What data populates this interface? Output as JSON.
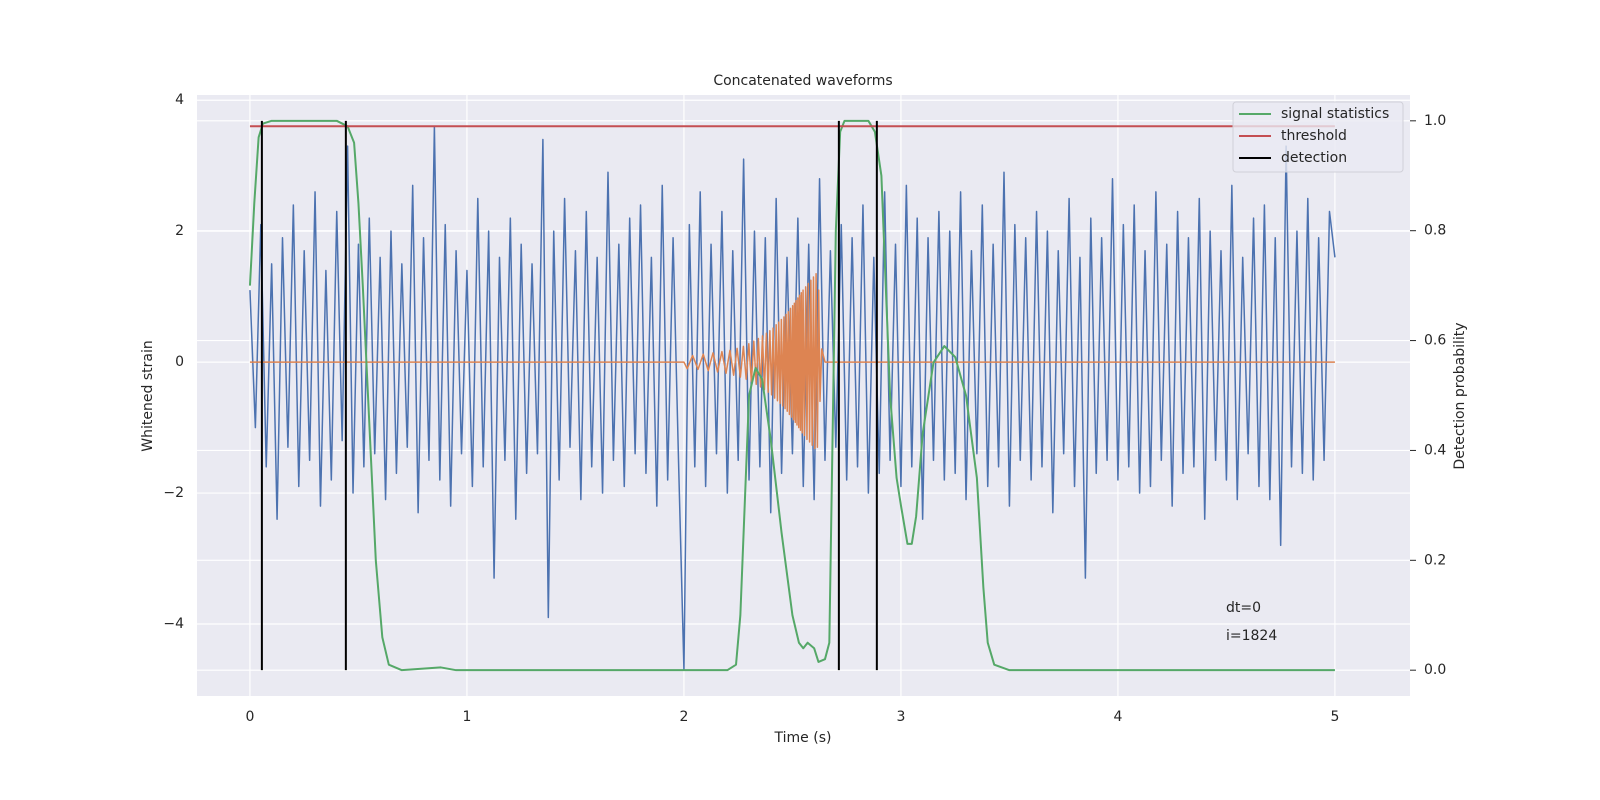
{
  "chart_data": {
    "type": "line",
    "title": "Concatenated waveforms",
    "xlabel": "Time (s)",
    "ylabel": "Whitened strain",
    "y2label": "Detection probability",
    "xlim": [
      -0.244,
      5.346
    ],
    "ylim": [
      -5.1,
      4.08
    ],
    "y2lim": [
      -0.047,
      1.047
    ],
    "xticks": [
      0,
      1,
      2,
      3,
      4,
      5
    ],
    "yticks": [
      {
        "value": -4,
        "label": "−4"
      },
      {
        "value": -2,
        "label": "−2"
      },
      0,
      2,
      4
    ],
    "y2ticks": [
      {
        "value": 0,
        "label": "0.0"
      },
      0.2,
      0.4,
      0.6,
      0.8,
      {
        "value": 1,
        "label": "1.0"
      }
    ],
    "grid": true,
    "legend": "upper right",
    "annotations": [
      "dt=0",
      "i=1824"
    ],
    "series": [
      {
        "color": "#4c72b0",
        "x": [
          0,
          0.025,
          0.05,
          0.075,
          0.1,
          0.125,
          0.15,
          0.175,
          0.2,
          0.225,
          0.25,
          0.275,
          0.3,
          0.325,
          0.35,
          0.375,
          0.4,
          0.425,
          0.45,
          0.475,
          0.5,
          0.525,
          0.55,
          0.575,
          0.6,
          0.625,
          0.65,
          0.675,
          0.7,
          0.725,
          0.75,
          0.775,
          0.8,
          0.825,
          0.85,
          0.875,
          0.9,
          0.925,
          0.95,
          0.975,
          1,
          1.025,
          1.05,
          1.075,
          1.1,
          1.125,
          1.15,
          1.175,
          1.2,
          1.225,
          1.25,
          1.275,
          1.3,
          1.325,
          1.35,
          1.375,
          1.4,
          1.425,
          1.45,
          1.475,
          1.5,
          1.525,
          1.55,
          1.575,
          1.6,
          1.625,
          1.65,
          1.675,
          1.7,
          1.725,
          1.75,
          1.775,
          1.8,
          1.825,
          1.85,
          1.875,
          1.9,
          1.925,
          1.95,
          1.975,
          2,
          2.025,
          2.05,
          2.075,
          2.1,
          2.125,
          2.15,
          2.175,
          2.2,
          2.225,
          2.25,
          2.275,
          2.3,
          2.325,
          2.35,
          2.375,
          2.4,
          2.425,
          2.45,
          2.475,
          2.5,
          2.525,
          2.55,
          2.575,
          2.6,
          2.625,
          2.65,
          2.675,
          2.7,
          2.725,
          2.75,
          2.775,
          2.8,
          2.825,
          2.85,
          2.875,
          2.9,
          2.925,
          2.95,
          2.975,
          3,
          3.025,
          3.05,
          3.075,
          3.1,
          3.125,
          3.15,
          3.175,
          3.2,
          3.225,
          3.25,
          3.275,
          3.3,
          3.325,
          3.35,
          3.375,
          3.4,
          3.425,
          3.45,
          3.475,
          3.5,
          3.525,
          3.55,
          3.575,
          3.6,
          3.625,
          3.65,
          3.675,
          3.7,
          3.725,
          3.75,
          3.775,
          3.8,
          3.825,
          3.85,
          3.875,
          3.9,
          3.925,
          3.95,
          3.975,
          4,
          4.025,
          4.05,
          4.075,
          4.1,
          4.125,
          4.15,
          4.175,
          4.2,
          4.225,
          4.25,
          4.275,
          4.3,
          4.325,
          4.35,
          4.375,
          4.4,
          4.425,
          4.45,
          4.475,
          4.5,
          4.525,
          4.55,
          4.575,
          4.6,
          4.625,
          4.65,
          4.675,
          4.7,
          4.725,
          4.75,
          4.775,
          4.8,
          4.825,
          4.85,
          4.875,
          4.9,
          4.925,
          4.95,
          4.975,
          5
        ],
        "values": [
          1.1,
          -1.0,
          2.1,
          -1.6,
          1.5,
          -2.4,
          1.9,
          -1.3,
          2.4,
          -1.9,
          1.7,
          -1.5,
          2.6,
          -2.2,
          1.4,
          -1.8,
          2.3,
          -1.2,
          3.3,
          -2.0,
          1.8,
          -1.6,
          2.2,
          -1.4,
          1.6,
          -2.1,
          2.0,
          -1.7,
          1.5,
          -1.3,
          2.7,
          -2.3,
          1.9,
          -1.5,
          3.6,
          -1.8,
          2.1,
          -2.2,
          1.7,
          -1.4,
          1.4,
          -1.9,
          2.5,
          -1.6,
          2.0,
          -3.3,
          1.6,
          -1.5,
          2.2,
          -2.4,
          1.8,
          -1.7,
          1.5,
          -1.4,
          3.4,
          -3.9,
          2.0,
          -1.8,
          2.5,
          -1.3,
          1.7,
          -2.1,
          2.3,
          -1.6,
          1.6,
          -2.0,
          2.9,
          -1.5,
          1.8,
          -1.9,
          2.2,
          -1.4,
          2.4,
          -1.7,
          1.6,
          -2.2,
          2.7,
          -1.8,
          1.9,
          -1.5,
          -4.7,
          2.1,
          -1.6,
          2.6,
          -1.9,
          1.8,
          -1.4,
          2.3,
          -2.0,
          1.7,
          -1.5,
          3.1,
          -1.8,
          2.0,
          -1.6,
          1.9,
          -2.3,
          2.5,
          -1.7,
          1.6,
          -1.4,
          2.2,
          -1.9,
          1.8,
          -2.1,
          2.8,
          -1.5,
          1.7,
          -1.3,
          2.1,
          -1.8,
          1.9,
          -1.6,
          2.4,
          -2.0,
          1.6,
          -1.7,
          2.6,
          -1.5,
          1.8,
          -1.9,
          2.7,
          -1.6,
          2.2,
          -2.4,
          1.9,
          -1.5,
          2.3,
          -1.8,
          2.0,
          -1.7,
          2.6,
          -2.1,
          1.7,
          -1.4,
          2.4,
          -1.9,
          1.8,
          -1.6,
          2.9,
          -2.2,
          2.1,
          -1.5,
          1.9,
          -1.8,
          2.3,
          -1.6,
          2.0,
          -2.3,
          1.7,
          -1.4,
          2.5,
          -1.9,
          1.6,
          -3.3,
          2.2,
          -1.7,
          1.9,
          -1.5,
          2.8,
          -1.8,
          2.1,
          -1.6,
          2.4,
          -2.0,
          1.7,
          -1.9,
          2.6,
          -1.5,
          1.8,
          -2.2,
          2.3,
          -1.7,
          1.9,
          -1.6,
          2.5,
          -2.4,
          2.0,
          -1.5,
          1.7,
          -1.8,
          2.7,
          -2.1,
          1.6,
          -1.4,
          2.2,
          -1.9,
          2.4,
          -2.1,
          1.9,
          -2.8,
          3.3,
          -1.6,
          2.0,
          -1.7,
          2.5,
          -1.8,
          1.9,
          -1.5,
          2.3,
          1.6
        ]
      },
      {
        "color": "#dd8452",
        "x": [
          0,
          2.0,
          2.015,
          2.04,
          2.065,
          2.089,
          2.112,
          2.134,
          2.155,
          2.175,
          2.194,
          2.212,
          2.229,
          2.245,
          2.26,
          2.274,
          2.287,
          2.299,
          2.311,
          2.322,
          2.333,
          2.343,
          2.353,
          2.362,
          2.371,
          2.38,
          2.388,
          2.396,
          2.404,
          2.411,
          2.418,
          2.425,
          2.431,
          2.437,
          2.443,
          2.449,
          2.455,
          2.461,
          2.466,
          2.471,
          2.476,
          2.481,
          2.486,
          2.491,
          2.496,
          2.501,
          2.505,
          2.509,
          2.513,
          2.517,
          2.521,
          2.525,
          2.529,
          2.533,
          2.537,
          2.541,
          2.545,
          2.549,
          2.555,
          2.561,
          2.567,
          2.573,
          2.579,
          2.585,
          2.591,
          2.597,
          2.603,
          2.609,
          2.615,
          2.621,
          2.627,
          2.635,
          2.65,
          5
        ],
        "values": [
          0,
          0,
          -0.1,
          0.1,
          -0.11,
          0.12,
          -0.13,
          0.14,
          -0.15,
          0.16,
          -0.17,
          0.18,
          -0.2,
          0.21,
          -0.23,
          0.24,
          -0.26,
          0.28,
          -0.3,
          0.32,
          -0.34,
          0.36,
          -0.38,
          0.4,
          -0.42,
          0.44,
          -0.46,
          0.48,
          -0.5,
          0.52,
          -0.55,
          0.57,
          -0.59,
          0.61,
          -0.63,
          0.65,
          -0.67,
          0.69,
          -0.71,
          0.73,
          -0.75,
          0.77,
          -0.8,
          0.82,
          -0.84,
          0.86,
          -0.88,
          0.9,
          -0.92,
          0.94,
          -0.96,
          0.98,
          -1.0,
          1.02,
          -1.04,
          1.06,
          -1.08,
          1.1,
          -1.12,
          1.15,
          -1.18,
          1.2,
          -1.22,
          1.25,
          -1.27,
          1.3,
          -1.32,
          1.35,
          -1.3,
          1.1,
          -0.6,
          0.2,
          0,
          0
        ]
      },
      {
        "name": "signal statistics",
        "color": "#55a868",
        "axis": "y2",
        "x": [
          0,
          0.02,
          0.04,
          0.06,
          0.1,
          0.4,
          0.45,
          0.48,
          0.5,
          0.52,
          0.55,
          0.58,
          0.61,
          0.64,
          0.7,
          0.88,
          0.95,
          2.2,
          2.24,
          2.26,
          2.28,
          2.3,
          2.33,
          2.36,
          2.4,
          2.45,
          2.5,
          2.53,
          2.55,
          2.57,
          2.6,
          2.62,
          2.65,
          2.67,
          2.68,
          2.7,
          2.72,
          2.74,
          2.85,
          2.88,
          2.91,
          2.93,
          2.95,
          2.98,
          3.0,
          3.03,
          3.05,
          3.07,
          3.1,
          3.15,
          3.2,
          3.25,
          3.3,
          3.35,
          3.38,
          3.4,
          3.43,
          3.5,
          5.0
        ],
        "values": [
          0.7,
          0.85,
          0.97,
          0.995,
          1.0,
          1.0,
          0.99,
          0.96,
          0.85,
          0.7,
          0.45,
          0.2,
          0.06,
          0.01,
          0.0,
          0.005,
          0.0,
          0.0,
          0.01,
          0.1,
          0.3,
          0.5,
          0.55,
          0.53,
          0.42,
          0.25,
          0.1,
          0.05,
          0.04,
          0.05,
          0.04,
          0.015,
          0.02,
          0.05,
          0.3,
          0.8,
          0.98,
          1.0,
          1.0,
          0.98,
          0.9,
          0.7,
          0.5,
          0.35,
          0.3,
          0.23,
          0.23,
          0.28,
          0.43,
          0.56,
          0.59,
          0.57,
          0.5,
          0.35,
          0.15,
          0.05,
          0.01,
          0.0,
          0.0
        ]
      },
      {
        "name": "threshold",
        "color": "#c44e52",
        "axis": "y2",
        "x": [
          0,
          5
        ],
        "values": [
          0.99,
          0.99
        ]
      },
      {
        "name": "detection",
        "color": "#000000",
        "axis": "y2",
        "type": "vlines",
        "x": [
          0.055,
          0.442,
          2.714,
          2.889
        ],
        "values": [
          1,
          1,
          1,
          1
        ]
      }
    ]
  }
}
